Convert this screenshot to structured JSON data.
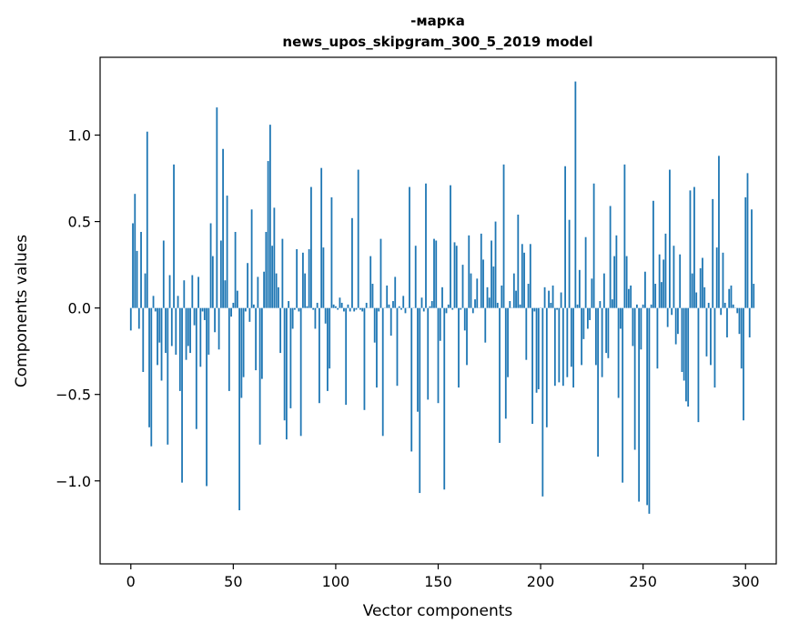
{
  "chart_data": {
    "type": "bar",
    "title_line1": "-марка",
    "title_line2": "news_upos_skipgram_300_5_2019 model",
    "xlabel": "Vector components",
    "ylabel": "Components values",
    "xlim": [
      -15,
      315
    ],
    "ylim": [
      -1.48,
      1.45
    ],
    "xticks": [
      0,
      50,
      100,
      150,
      200,
      250,
      300
    ],
    "xtick_labels": [
      "0",
      "50",
      "100",
      "150",
      "200",
      "250",
      "300"
    ],
    "yticks": [
      -1.0,
      -0.5,
      0.0,
      0.5,
      1.0
    ],
    "ytick_labels": [
      "−1.0",
      "−0.5",
      "0.0",
      "0.5",
      "1.0"
    ],
    "bar_color": "#1f77b4",
    "values": [
      -0.13,
      0.49,
      0.66,
      0.33,
      -0.12,
      0.44,
      -0.37,
      0.2,
      1.02,
      -0.69,
      -0.8,
      0.07,
      -0.02,
      -0.33,
      -0.2,
      -0.42,
      0.39,
      -0.26,
      -0.79,
      0.19,
      -0.22,
      0.83,
      -0.27,
      0.07,
      -0.48,
      -1.01,
      0.16,
      -0.3,
      -0.22,
      -0.26,
      0.19,
      -0.1,
      -0.7,
      0.18,
      -0.34,
      -0.02,
      -0.07,
      -1.03,
      -0.27,
      0.49,
      0.3,
      -0.14,
      1.16,
      -0.24,
      0.39,
      0.92,
      0.16,
      0.65,
      -0.48,
      -0.05,
      0.03,
      0.44,
      0.1,
      -1.17,
      -0.52,
      -0.4,
      -0.02,
      0.26,
      -0.08,
      0.57,
      0.02,
      -0.36,
      0.18,
      -0.79,
      -0.41,
      0.21,
      0.44,
      0.85,
      1.06,
      0.36,
      0.58,
      0.2,
      0.12,
      -0.26,
      0.4,
      -0.65,
      -0.76,
      0.04,
      -0.58,
      -0.12,
      -0.01,
      0.34,
      -0.02,
      -0.74,
      0.32,
      0.2,
      0.01,
      0.34,
      0.7,
      -0.01,
      -0.12,
      0.03,
      -0.55,
      0.81,
      0.35,
      -0.09,
      -0.48,
      -0.35,
      0.64,
      0.02,
      0.01,
      -0.01,
      0.06,
      0.03,
      -0.02,
      -0.56,
      0.02,
      -0.02,
      0.52,
      -0.02,
      -0.01,
      0.8,
      -0.01,
      -0.02,
      -0.59,
      0.03,
      0.0,
      0.3,
      0.14,
      -0.2,
      -0.46,
      -0.02,
      0.4,
      -0.74,
      0.0,
      0.13,
      0.02,
      -0.16,
      0.04,
      0.18,
      -0.45,
      0.01,
      -0.01,
      0.07,
      -0.03,
      0.0,
      0.7,
      -0.83,
      0.0,
      0.36,
      -0.6,
      -1.07,
      0.06,
      -0.02,
      0.72,
      -0.53,
      0.01,
      0.04,
      0.4,
      0.39,
      -0.55,
      -0.19,
      0.12,
      -1.05,
      -0.03,
      0.02,
      0.71,
      -0.01,
      0.38,
      0.36,
      -0.46,
      -0.01,
      0.25,
      -0.13,
      -0.33,
      0.42,
      0.2,
      -0.03,
      0.05,
      0.17,
      0.0,
      0.43,
      0.28,
      -0.2,
      0.12,
      0.06,
      0.39,
      0.24,
      0.5,
      0.03,
      -0.78,
      0.13,
      0.83,
      -0.64,
      -0.4,
      0.04,
      0.0,
      0.2,
      0.1,
      0.54,
      0.02,
      0.37,
      0.32,
      -0.3,
      0.14,
      0.37,
      -0.67,
      -0.02,
      -0.49,
      -0.47,
      0.0,
      -1.09,
      0.12,
      -0.69,
      0.1,
      0.03,
      0.13,
      -0.45,
      -0.01,
      -0.43,
      0.09,
      -0.45,
      0.82,
      -0.4,
      0.51,
      -0.34,
      -0.46,
      1.31,
      0.02,
      0.22,
      -0.33,
      -0.18,
      0.41,
      -0.12,
      -0.07,
      0.17,
      0.72,
      -0.33,
      -0.86,
      0.04,
      -0.4,
      0.2,
      -0.26,
      -0.29,
      0.59,
      0.05,
      0.3,
      0.42,
      -0.52,
      -0.12,
      -1.01,
      0.83,
      0.3,
      0.11,
      0.13,
      -0.22,
      -0.82,
      0.02,
      -1.12,
      -0.24,
      0.02,
      0.21,
      -1.14,
      -1.19,
      0.02,
      0.62,
      0.14,
      -0.35,
      0.31,
      0.15,
      0.28,
      0.43,
      -0.11,
      0.8,
      -0.04,
      0.36,
      -0.21,
      -0.15,
      0.31,
      -0.37,
      -0.42,
      -0.54,
      -0.57,
      0.68,
      0.2,
      0.7,
      0.09,
      -0.66,
      0.23,
      0.29,
      0.12,
      -0.28,
      0.03,
      -0.33,
      0.63,
      -0.46,
      0.35,
      0.88,
      -0.04,
      0.32,
      0.03,
      -0.17,
      0.11,
      0.13,
      0.02,
      0.0,
      -0.03,
      -0.15,
      -0.35,
      -0.65,
      0.64,
      0.78,
      -0.17,
      0.57,
      0.14
    ]
  }
}
